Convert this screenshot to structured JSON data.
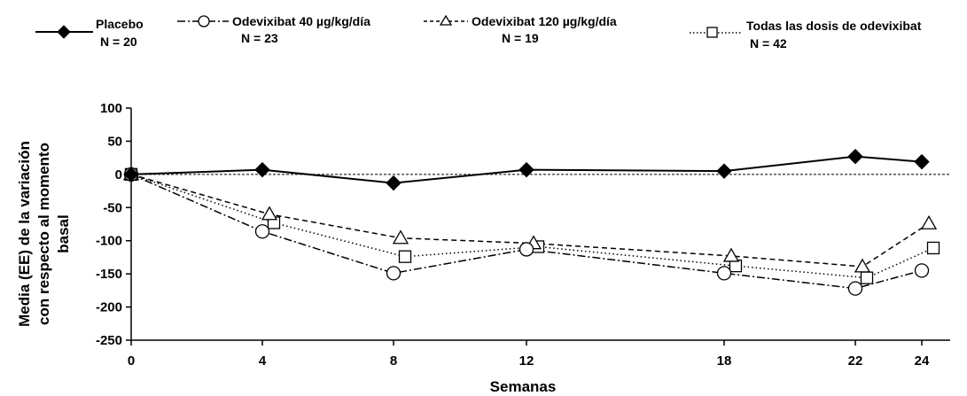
{
  "chart_data": {
    "type": "line",
    "xlabel": "Semanas",
    "ylabel_lines": [
      "Media (EE) de la variación",
      "con respecto al momento",
      "basal"
    ],
    "x": [
      0,
      4,
      8,
      12,
      18,
      22,
      24
    ],
    "x_tick_labels": [
      "0",
      "4",
      "8",
      "12",
      "18",
      "22",
      "24"
    ],
    "ylim": [
      -250,
      100
    ],
    "y_ticks": [
      100,
      50,
      0,
      -50,
      -100,
      -150,
      -200,
      -250
    ],
    "y_tick_labels": [
      "100",
      "50",
      "0",
      "-50",
      "-100",
      "-150",
      "-200",
      "-250"
    ],
    "reference_line_y": 0,
    "series": [
      {
        "name": "Placebo",
        "n_label": "N = 20",
        "marker": "diamond",
        "line_style": "solid",
        "values": [
          0,
          7,
          -13,
          7,
          5,
          27,
          19
        ]
      },
      {
        "name": "Odevixibat 40 µg/kg/día",
        "n_label": "N = 23",
        "marker": "circle",
        "line_style": "dash-dot",
        "values": [
          0,
          -86,
          -149,
          -113,
          -149,
          -172,
          -145
        ]
      },
      {
        "name": "Odevixibat 120 µg/kg/día",
        "n_label": "N = 19",
        "marker": "triangle",
        "line_style": "dashed",
        "values": [
          0,
          -60,
          -96,
          -104,
          -123,
          -139,
          -74
        ]
      },
      {
        "name": "Todas las dosis de odevixibat",
        "n_label": "N = 42",
        "marker": "square",
        "line_style": "dotted",
        "values": [
          0,
          -73,
          -124,
          -109,
          -138,
          -156,
          -111
        ]
      }
    ]
  }
}
